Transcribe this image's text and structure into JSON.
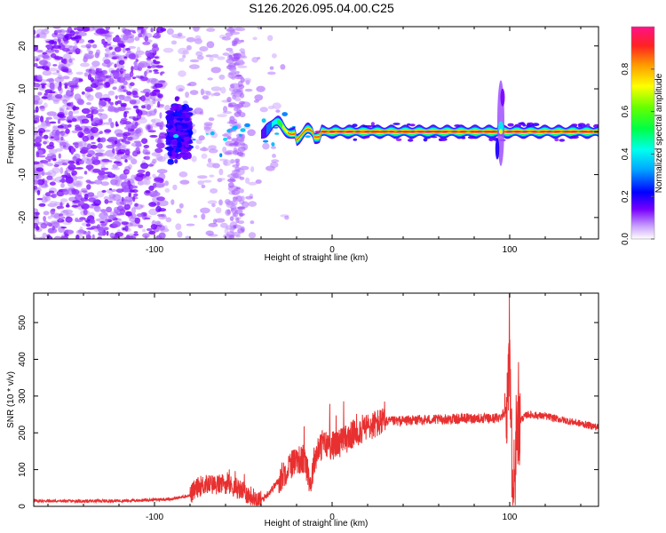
{
  "title": "S126.2026.095.04.00.C25",
  "chart_data": [
    {
      "type": "heatmap",
      "name": "spectrogram",
      "xlabel": "Height of straight line (km)",
      "ylabel": "Frequency (Hz)",
      "xlim": [
        -168,
        150
      ],
      "ylim": [
        -25,
        24.5
      ],
      "xticks": [
        -100,
        0,
        100
      ],
      "xtick_labels": [
        "-100",
        "0",
        "100"
      ],
      "yticks": [
        20,
        10,
        0,
        -10,
        -20
      ],
      "ytick_labels": [
        "20",
        "10",
        "0",
        "-10",
        "-20"
      ],
      "colorbar": {
        "label": "Normalized spectral amplitude",
        "range": [
          0,
          1
        ],
        "ticks": [
          0.0,
          0.2,
          0.4,
          0.6,
          0.8
        ],
        "tick_labels": [
          "0.0",
          "0.2",
          "0.4",
          "0.6",
          "0.8"
        ],
        "colormap": [
          "#ffffff",
          "#7700ff",
          "#0000ff",
          "#00ffff",
          "#00ff00",
          "#ffff00",
          "#ff8800",
          "#ff0044",
          "#ff1188"
        ]
      },
      "features": {
        "noise_region_km": [
          -168,
          -40
        ],
        "carrier_start_km": -40,
        "carrier_frequency_hz": 0,
        "burst_height_km": 95,
        "burst_frequency_span_hz": [
          -8,
          12
        ]
      }
    },
    {
      "type": "line",
      "name": "snr",
      "xlabel": "Height of straight line (km)",
      "ylabel": "SNR (10 * v/v)",
      "xlim": [
        -168,
        150
      ],
      "ylim": [
        0,
        580
      ],
      "xticks": [
        -100,
        0,
        100
      ],
      "xtick_labels": [
        "-100",
        "0",
        "100"
      ],
      "yticks": [
        0,
        100,
        200,
        300,
        400,
        500
      ],
      "ytick_labels": [
        "0",
        "100",
        "200",
        "300",
        "400",
        "500"
      ],
      "color": "#e83030",
      "series": [
        {
          "name": "SNR",
          "x": [
            -168,
            -140,
            -110,
            -90,
            -80,
            -75,
            -70,
            -65,
            -60,
            -55,
            -50,
            -45,
            -40,
            -35,
            -30,
            -25,
            -20,
            -15,
            -12,
            -10,
            -8,
            -5,
            0,
            5,
            10,
            15,
            20,
            25,
            30,
            40,
            50,
            60,
            70,
            80,
            90,
            94,
            96,
            98,
            100,
            101,
            102,
            103,
            104,
            106,
            110,
            120,
            130,
            140,
            150
          ],
          "y": [
            15,
            14,
            16,
            20,
            30,
            55,
            60,
            58,
            62,
            52,
            40,
            25,
            15,
            40,
            70,
            105,
            130,
            120,
            60,
            130,
            150,
            170,
            165,
            175,
            190,
            205,
            215,
            225,
            230,
            233,
            235,
            236,
            238,
            240,
            238,
            242,
            250,
            260,
            360,
            150,
            40,
            80,
            180,
            235,
            250,
            245,
            235,
            225,
            215
          ]
        }
      ]
    }
  ]
}
